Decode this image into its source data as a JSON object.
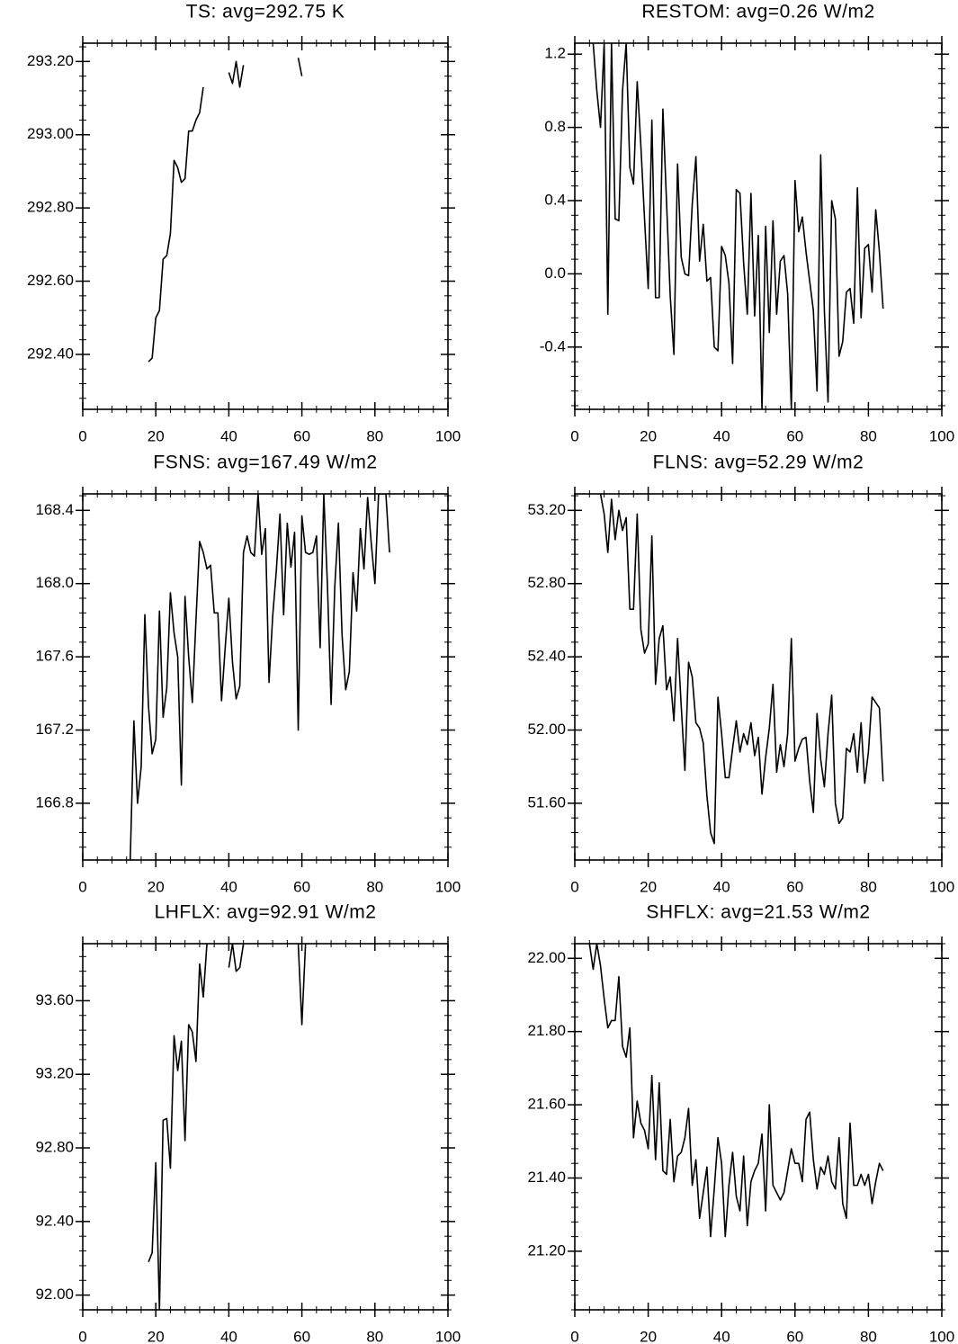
{
  "chart_data": [
    {
      "type": "line",
      "title": "TS: avg=292.75 K",
      "color": "#000000",
      "x": [
        18,
        19,
        20,
        21,
        22,
        23,
        24,
        25,
        26,
        27,
        28,
        29,
        30,
        31,
        32,
        33,
        34,
        40,
        41,
        42,
        43,
        44,
        45,
        59,
        60
      ],
      "values": [
        292.38,
        292.39,
        292.5,
        292.52,
        292.66,
        292.67,
        292.73,
        292.93,
        292.91,
        292.87,
        292.88,
        293.01,
        293.01,
        293.04,
        293.06,
        293.13,
        null,
        293.17,
        293.14,
        293.2,
        293.13,
        293.19,
        null,
        293.21,
        293.16
      ],
      "xlim": [
        0,
        100
      ],
      "xticks": [
        0,
        20,
        40,
        60,
        80,
        100
      ],
      "ylim": [
        292.25,
        293.25
      ],
      "yticks": [
        {
          "value": 292.4,
          "label": "292.40"
        },
        {
          "value": 292.6,
          "label": "292.60"
        },
        {
          "value": 292.8,
          "label": "292.80"
        },
        {
          "value": 293,
          "label": "293.00"
        },
        {
          "value": 293.2,
          "label": "293.20"
        }
      ]
    },
    {
      "type": "line",
      "title": "RESTOM: avg=0.26 W/m2",
      "color": "#000000",
      "x": [
        5,
        6,
        7,
        8,
        9,
        10,
        11,
        12,
        13,
        14,
        15,
        16,
        17,
        18,
        19,
        20,
        21,
        22,
        23,
        24,
        25,
        26,
        27,
        28,
        29,
        30,
        31,
        32,
        33,
        34,
        35,
        36,
        37,
        38,
        39,
        40,
        41,
        42,
        43,
        44,
        45,
        46,
        47,
        48,
        49,
        50,
        51,
        52,
        53,
        54,
        55,
        56,
        57,
        58,
        59,
        60,
        61,
        62,
        63,
        64,
        65,
        66,
        67,
        68,
        69,
        70,
        71,
        72,
        73,
        74,
        75,
        76,
        77,
        78,
        79,
        80,
        81,
        82,
        83,
        84
      ],
      "values": [
        1.26,
        1.0,
        0.8,
        1.26,
        -0.22,
        1.26,
        0.3,
        0.29,
        1.0,
        1.26,
        0.58,
        0.49,
        1.05,
        0.7,
        0.3,
        -0.08,
        0.84,
        -0.13,
        -0.13,
        0.9,
        0.39,
        -0.12,
        -0.44,
        0.6,
        0.09,
        0.0,
        -0.01,
        0.38,
        0.64,
        0.07,
        0.27,
        -0.04,
        -0.02,
        -0.4,
        -0.42,
        0.15,
        0.1,
        -0.05,
        -0.49,
        0.46,
        0.44,
        0.06,
        -0.22,
        0.44,
        -0.23,
        0.21,
        -0.74,
        0.26,
        -0.32,
        0.29,
        -0.22,
        0.07,
        0.1,
        -0.11,
        -0.74,
        0.51,
        0.23,
        0.31,
        0.12,
        -0.04,
        -0.2,
        -0.64,
        0.65,
        -0.2,
        -0.7,
        0.4,
        0.3,
        -0.45,
        -0.37,
        -0.1,
        -0.08,
        -0.27,
        0.47,
        -0.24,
        0.14,
        0.16,
        -0.1,
        0.35,
        0.12,
        -0.19
      ],
      "xlim": [
        0,
        100
      ],
      "xticks": [
        0,
        20,
        40,
        60,
        80,
        100
      ],
      "ylim": [
        -0.74,
        1.26
      ],
      "yticks": [
        -0.4,
        {
          "value": 0,
          "label": "0.0"
        },
        0.4,
        0.8,
        1.2
      ]
    },
    {
      "type": "line",
      "title": "FSNS: avg=167.49 W/m2",
      "color": "#000000",
      "x": [
        13,
        14,
        15,
        16,
        17,
        18,
        19,
        20,
        21,
        22,
        23,
        24,
        25,
        26,
        27,
        28,
        29,
        30,
        31,
        32,
        33,
        34,
        35,
        36,
        37,
        38,
        39,
        40,
        41,
        42,
        43,
        44,
        45,
        46,
        47,
        48,
        49,
        50,
        51,
        52,
        53,
        54,
        55,
        56,
        57,
        58,
        59,
        60,
        61,
        62,
        63,
        64,
        65,
        66,
        67,
        68,
        69,
        70,
        71,
        72,
        73,
        74,
        75,
        76,
        77,
        78,
        79,
        80,
        81,
        82,
        83,
        84
      ],
      "values": [
        166.49,
        167.25,
        166.8,
        167.0,
        167.83,
        167.33,
        167.07,
        167.15,
        167.85,
        167.27,
        167.43,
        167.95,
        167.73,
        167.6,
        166.9,
        167.93,
        167.6,
        167.35,
        167.8,
        168.23,
        168.17,
        168.08,
        168.1,
        167.84,
        167.84,
        167.36,
        167.65,
        167.92,
        167.57,
        167.37,
        167.44,
        168.17,
        168.26,
        168.17,
        168.15,
        168.49,
        168.16,
        168.3,
        167.46,
        167.82,
        168.07,
        168.38,
        167.83,
        168.33,
        168.09,
        168.28,
        167.2,
        168.37,
        168.17,
        168.16,
        168.17,
        168.26,
        167.65,
        168.49,
        167.99,
        167.34,
        167.98,
        168.33,
        167.72,
        167.42,
        167.52,
        168.06,
        167.85,
        168.3,
        168.08,
        168.47,
        168.22,
        168.0,
        168.49,
        168.49,
        168.49,
        168.17
      ],
      "xlim": [
        0,
        100
      ],
      "xticks": [
        0,
        20,
        40,
        60,
        80,
        100
      ],
      "ylim": [
        166.49,
        168.49
      ],
      "yticks": [
        166.8,
        167.2,
        167.6,
        {
          "value": 168,
          "label": "168.0"
        },
        168.4
      ]
    },
    {
      "type": "line",
      "title": "FLNS: avg=52.29 W/m2",
      "color": "#000000",
      "x": [
        7,
        8,
        9,
        10,
        11,
        12,
        13,
        14,
        15,
        16,
        17,
        18,
        19,
        20,
        21,
        22,
        23,
        24,
        25,
        26,
        27,
        28,
        29,
        30,
        31,
        32,
        33,
        34,
        35,
        36,
        37,
        38,
        39,
        40,
        41,
        42,
        43,
        44,
        45,
        46,
        47,
        48,
        49,
        50,
        51,
        52,
        53,
        54,
        55,
        56,
        57,
        58,
        59,
        60,
        61,
        62,
        63,
        64,
        65,
        66,
        67,
        68,
        69,
        70,
        71,
        72,
        73,
        74,
        75,
        76,
        77,
        78,
        79,
        80,
        81,
        82,
        83,
        84
      ],
      "values": [
        53.29,
        53.18,
        52.97,
        53.26,
        53.04,
        53.2,
        53.09,
        53.16,
        52.66,
        52.66,
        53.18,
        52.55,
        52.42,
        52.47,
        53.06,
        52.25,
        52.5,
        52.57,
        52.22,
        52.29,
        52.05,
        52.5,
        52.13,
        51.78,
        52.37,
        52.29,
        52.04,
        52.01,
        51.93,
        51.64,
        51.44,
        51.38,
        52.18,
        51.98,
        51.74,
        51.74,
        51.9,
        52.05,
        51.88,
        51.98,
        51.92,
        52.04,
        51.86,
        51.96,
        51.65,
        51.85,
        52.01,
        52.25,
        51.77,
        51.92,
        51.8,
        51.98,
        52.5,
        51.83,
        51.9,
        51.95,
        51.96,
        51.72,
        51.55,
        52.09,
        51.84,
        51.69,
        51.98,
        52.19,
        51.6,
        51.49,
        51.52,
        51.9,
        51.88,
        51.98,
        51.77,
        52.04,
        51.71,
        51.88,
        52.18,
        52.15,
        52.12,
        51.72
      ],
      "xlim": [
        0,
        100
      ],
      "xticks": [
        0,
        20,
        40,
        60,
        80,
        100
      ],
      "ylim": [
        51.29,
        53.29
      ],
      "yticks": [
        {
          "value": 51.6,
          "label": "51.60"
        },
        {
          "value": 52,
          "label": "52.00"
        },
        {
          "value": 52.4,
          "label": "52.40"
        },
        {
          "value": 52.8,
          "label": "52.80"
        },
        {
          "value": 53.2,
          "label": "53.20"
        }
      ]
    },
    {
      "type": "line",
      "title": "LHFLX: avg=92.91 W/m2",
      "color": "#000000",
      "x": [
        18,
        19,
        20,
        21,
        22,
        23,
        24,
        25,
        26,
        27,
        28,
        29,
        30,
        31,
        32,
        33,
        34,
        35,
        40,
        41,
        42,
        43,
        44,
        45,
        59,
        60,
        61
      ],
      "values": [
        92.18,
        92.23,
        92.72,
        91.92,
        92.95,
        92.96,
        92.69,
        93.41,
        93.22,
        93.38,
        92.84,
        93.47,
        93.43,
        93.27,
        93.8,
        93.62,
        93.91,
        null,
        93.78,
        93.91,
        93.76,
        93.78,
        93.91,
        null,
        93.91,
        93.47,
        93.91
      ],
      "xlim": [
        0,
        100
      ],
      "xticks": [
        0,
        20,
        40,
        60,
        80,
        100
      ],
      "ylim": [
        91.92,
        93.91
      ],
      "yticks": [
        {
          "value": 92,
          "label": "92.00"
        },
        {
          "value": 92.4,
          "label": "92.40"
        },
        {
          "value": 92.8,
          "label": "92.80"
        },
        {
          "value": 93.2,
          "label": "93.20"
        },
        {
          "value": 93.6,
          "label": "93.60"
        }
      ]
    },
    {
      "type": "line",
      "title": "SHFLX: avg=21.53 W/m2",
      "color": "#000000",
      "x": [
        4,
        5,
        6,
        7,
        8,
        9,
        10,
        11,
        12,
        13,
        14,
        15,
        16,
        17,
        18,
        19,
        20,
        21,
        22,
        23,
        24,
        25,
        26,
        27,
        28,
        29,
        30,
        31,
        32,
        33,
        34,
        35,
        36,
        37,
        38,
        39,
        40,
        41,
        42,
        43,
        44,
        45,
        46,
        47,
        48,
        49,
        50,
        51,
        52,
        53,
        54,
        55,
        56,
        57,
        58,
        59,
        60,
        61,
        62,
        63,
        64,
        65,
        66,
        67,
        68,
        69,
        70,
        71,
        72,
        73,
        74,
        75,
        76,
        77,
        78,
        79,
        80,
        81,
        82,
        83,
        84
      ],
      "values": [
        22.04,
        21.97,
        22.04,
        21.98,
        21.89,
        21.81,
        21.83,
        21.83,
        21.95,
        21.76,
        21.73,
        21.81,
        21.51,
        21.61,
        21.55,
        21.53,
        21.48,
        21.68,
        21.45,
        21.66,
        21.42,
        21.41,
        21.56,
        21.39,
        21.46,
        21.47,
        21.51,
        21.59,
        21.38,
        21.45,
        21.29,
        21.36,
        21.43,
        21.24,
        21.37,
        21.51,
        21.44,
        21.24,
        21.38,
        21.47,
        21.35,
        21.31,
        21.46,
        21.27,
        21.39,
        21.42,
        21.44,
        21.52,
        21.31,
        21.6,
        21.38,
        21.36,
        21.34,
        21.36,
        21.42,
        21.48,
        21.44,
        21.44,
        21.39,
        21.56,
        21.58,
        21.45,
        21.37,
        21.43,
        21.41,
        21.46,
        21.39,
        21.37,
        21.51,
        21.33,
        21.29,
        21.55,
        21.38,
        21.38,
        21.41,
        21.38,
        21.41,
        21.33,
        21.39,
        21.44,
        21.42
      ],
      "xlim": [
        0,
        100
      ],
      "xticks": [
        0,
        20,
        40,
        60,
        80,
        100
      ],
      "ylim": [
        21.04,
        22.04
      ],
      "yticks": [
        {
          "value": 21.2,
          "label": "21.20"
        },
        {
          "value": 21.4,
          "label": "21.40"
        },
        {
          "value": 21.6,
          "label": "21.60"
        },
        {
          "value": 21.8,
          "label": "21.80"
        },
        {
          "value": 22,
          "label": "22.00"
        }
      ]
    }
  ]
}
